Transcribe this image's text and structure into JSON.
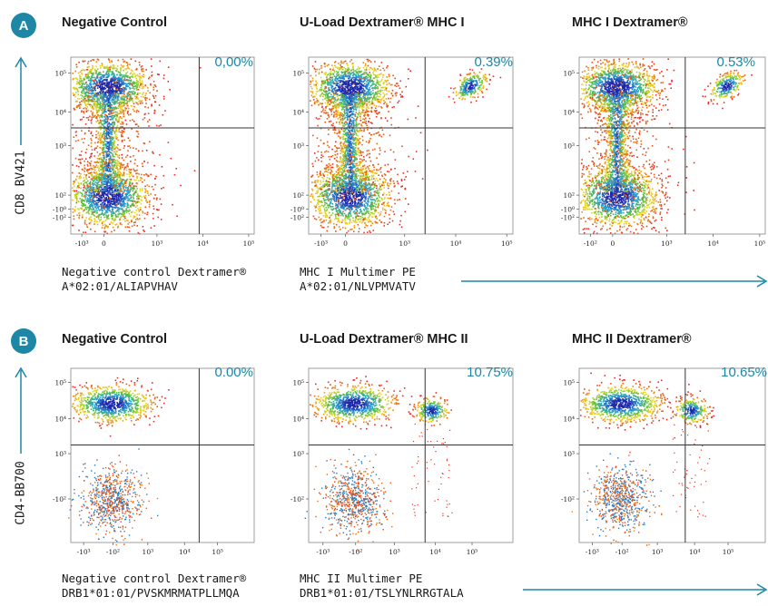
{
  "colors": {
    "accent": "#1d87a5",
    "gate": "#333333"
  },
  "panel_a": {
    "badge": "A",
    "y_label": "CD8 BV421",
    "plots": [
      {
        "title": "Negative Control",
        "percent": "0,00%",
        "reagent_line1": "Negative control Dextramer®",
        "reagent_line2": "A*02:01/ALIAPVHAV"
      },
      {
        "title": "U-Load Dextramer® MHC I",
        "percent": "0.39%",
        "reagent_line1": "MHC I Multimer PE",
        "reagent_line2": "A*02:01/NLVPMVATV"
      },
      {
        "title": "MHC I Dextramer®",
        "percent": "0.53%",
        "reagent_line1": "",
        "reagent_line2": ""
      }
    ]
  },
  "panel_b": {
    "badge": "B",
    "y_label": "CD4-BB700",
    "plots": [
      {
        "title": "Negative Control",
        "percent": "0.00%",
        "reagent_line1": "Negative control Dextramer®",
        "reagent_line2": "DRB1*01:01/PVSKMRMATPLLMQA"
      },
      {
        "title": "U-Load Dextramer® MHC II",
        "percent": "10.75%",
        "reagent_line1": "MHC II Multimer PE",
        "reagent_line2": "DRB1*01:01/TSLYNLRRGTALA"
      },
      {
        "title": "MHC II Dextramer®",
        "percent": "10.65%",
        "reagent_line1": "",
        "reagent_line2": ""
      }
    ]
  },
  "chart_data": [
    {
      "type": "scatter",
      "subtype": "flow-cytometry-density",
      "title": "Negative Control",
      "ylabel": "CD8 BV421",
      "xscale": "biexponential",
      "yscale": "biexponential",
      "x_ticks": [
        "-10³",
        "0",
        "10³",
        "10⁴",
        "10⁵"
      ],
      "y_ticks": [
        "-10²",
        "-10⁰",
        "10²",
        "10³",
        "10⁴",
        "10⁵"
      ],
      "upper_right_quadrant_percent": 0.0
    },
    {
      "type": "scatter",
      "subtype": "flow-cytometry-density",
      "title": "U-Load Dextramer® MHC I",
      "ylabel": "CD8 BV421",
      "xscale": "biexponential",
      "yscale": "biexponential",
      "x_ticks": [
        "-10³",
        "0",
        "10³",
        "10⁴",
        "10⁵"
      ],
      "y_ticks": [
        "-10²",
        "-10⁰",
        "10²",
        "10³",
        "10⁴",
        "10⁵"
      ],
      "upper_right_quadrant_percent": 0.39
    },
    {
      "type": "scatter",
      "subtype": "flow-cytometry-density",
      "title": "MHC I Dextramer®",
      "ylabel": "CD8 BV421",
      "xscale": "biexponential",
      "yscale": "biexponential",
      "x_ticks": [
        "-10²",
        "0",
        "10³",
        "10⁴",
        "10⁵"
      ],
      "y_ticks": [
        "-10²",
        "-10⁰",
        "10²",
        "10³",
        "10⁴",
        "10⁵"
      ],
      "upper_right_quadrant_percent": 0.53
    },
    {
      "type": "scatter",
      "subtype": "flow-cytometry-density",
      "title": "Negative Control",
      "ylabel": "CD4-BB700",
      "xscale": "biexponential",
      "yscale": "biexponential",
      "x_ticks": [
        "-10³",
        "-10²",
        "10³",
        "10⁴",
        "10⁵"
      ],
      "y_ticks": [
        "-10²",
        "10³",
        "10⁴",
        "10⁵"
      ],
      "upper_right_quadrant_percent": 0.0
    },
    {
      "type": "scatter",
      "subtype": "flow-cytometry-density",
      "title": "U-Load Dextramer® MHC II",
      "ylabel": "CD4-BB700",
      "xscale": "biexponential",
      "yscale": "biexponential",
      "x_ticks": [
        "-10³",
        "-10²",
        "10³",
        "10⁴",
        "10⁵"
      ],
      "y_ticks": [
        "-10²",
        "10³",
        "10⁴",
        "10⁵"
      ],
      "upper_right_quadrant_percent": 10.75
    },
    {
      "type": "scatter",
      "subtype": "flow-cytometry-density",
      "title": "MHC II Dextramer®",
      "ylabel": "CD4-BB700",
      "xscale": "biexponential",
      "yscale": "biexponential",
      "x_ticks": [
        "-10³",
        "-10²",
        "10³",
        "10⁴",
        "10⁵"
      ],
      "y_ticks": [
        "-10²",
        "10³",
        "10⁴",
        "10⁵"
      ],
      "upper_right_quadrant_percent": 10.65
    }
  ]
}
